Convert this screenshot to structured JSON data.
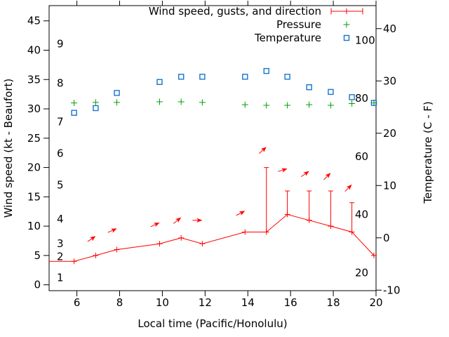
{
  "chart_data": {
    "type": "line",
    "title": "",
    "xlabel": "Local time (Pacific/Honolulu)",
    "ylabel_left": "Wind speed (kt - Beaufort)",
    "ylabel_right": "Temperature (C - F)",
    "legend": [
      {
        "label": "Wind speed, gusts, and direction",
        "marker": "errorbar-plus-line",
        "color": "#ff0000"
      },
      {
        "label": "Pressure",
        "marker": "plus",
        "color": "#00a000"
      },
      {
        "label": "Temperature",
        "marker": "open-square",
        "color": "#1874cd"
      }
    ],
    "x_axis": {
      "min": 4.7,
      "max": 20,
      "ticks": [
        6,
        8,
        10,
        12,
        14,
        16,
        18,
        20
      ],
      "mirrored_top_ticks": true
    },
    "y_axis_left": {
      "min": -1.0,
      "max": 47.6,
      "ticks": [
        0,
        5,
        10,
        15,
        20,
        25,
        30,
        35,
        40,
        45
      ],
      "unit": "kt"
    },
    "y_axis_right": {
      "min": -10.1,
      "max": 44.4,
      "ticks": [
        -10,
        0,
        10,
        20,
        30,
        40
      ],
      "unit": "C"
    },
    "beaufort_scale_labels": [
      {
        "label": "9",
        "kt": 41.1
      },
      {
        "label": "8",
        "kt": 34.4
      },
      {
        "label": "7",
        "kt": 27.8
      },
      {
        "label": "6",
        "kt": 22.4
      },
      {
        "label": "5",
        "kt": 17.0
      },
      {
        "label": "4",
        "kt": 11.2
      },
      {
        "label": "3",
        "kt": 7.0
      },
      {
        "label": "2",
        "kt": 4.8
      },
      {
        "label": "1",
        "kt": 1.2
      }
    ],
    "fahrenheit_scale_labels": [
      {
        "label": "100",
        "f": 100
      },
      {
        "label": "80",
        "f": 80
      },
      {
        "label": "60",
        "f": 60
      },
      {
        "label": "40",
        "f": 40
      },
      {
        "label": "20",
        "f": 20
      }
    ],
    "series": {
      "wind": {
        "name": "Wind speed, gusts, and direction",
        "x_hours": [
          5.87,
          6.88,
          7.87,
          9.87,
          10.88,
          11.87,
          13.87,
          14.87,
          15.85,
          16.87,
          17.88,
          18.87,
          19.9
        ],
        "speed_kt": [
          4,
          5,
          6,
          7,
          8,
          7,
          9,
          9,
          12,
          11,
          10,
          9,
          5
        ],
        "gust_kt": [
          null,
          null,
          null,
          null,
          null,
          null,
          null,
          20,
          16,
          16,
          16,
          14,
          null
        ],
        "lead_in_point": {
          "x_hours": 4.7,
          "speed_kt": 4
        },
        "direction_arrows": [
          {
            "x_hours": 6.88,
            "y_kt": 8.3,
            "angle_deg": 146
          },
          {
            "x_hours": 7.87,
            "y_kt": 9.6,
            "angle_deg": 156
          },
          {
            "x_hours": 9.87,
            "y_kt": 10.6,
            "angle_deg": 156
          },
          {
            "x_hours": 10.88,
            "y_kt": 11.5,
            "angle_deg": 141
          },
          {
            "x_hours": 11.87,
            "y_kt": 11.0,
            "angle_deg": 180
          },
          {
            "x_hours": 13.87,
            "y_kt": 12.6,
            "angle_deg": 153
          },
          {
            "x_hours": 14.87,
            "y_kt": 23.5,
            "angle_deg": 138
          },
          {
            "x_hours": 15.85,
            "y_kt": 19.8,
            "angle_deg": 163
          },
          {
            "x_hours": 16.87,
            "y_kt": 19.4,
            "angle_deg": 145
          },
          {
            "x_hours": 17.88,
            "y_kt": 19.1,
            "angle_deg": 135
          },
          {
            "x_hours": 18.87,
            "y_kt": 17.1,
            "angle_deg": 135
          }
        ]
      },
      "pressure": {
        "name": "Pressure",
        "x_hours": [
          5.87,
          6.88,
          7.87,
          9.87,
          10.88,
          11.87,
          13.87,
          14.87,
          15.85,
          16.87,
          17.88,
          18.87,
          19.9
        ],
        "y_left_axis_units": [
          31.0,
          31.1,
          31.1,
          31.2,
          31.2,
          31.1,
          30.7,
          30.6,
          30.6,
          30.7,
          30.6,
          30.9,
          31.0
        ]
      },
      "temperature": {
        "name": "Temperature",
        "x_hours": [
          5.87,
          6.88,
          7.87,
          9.87,
          10.88,
          11.87,
          13.87,
          14.87,
          15.85,
          16.87,
          17.88,
          18.87,
          19.9
        ],
        "celsius": [
          23.9,
          24.8,
          27.7,
          29.8,
          30.8,
          30.8,
          30.8,
          31.9,
          30.8,
          28.8,
          27.9,
          26.9,
          25.8
        ]
      }
    }
  },
  "colors": {
    "wind": "#ff0000",
    "pressure": "#00a000",
    "temperature": "#1874cd",
    "axis": "#000000",
    "background": "#ffffff"
  }
}
